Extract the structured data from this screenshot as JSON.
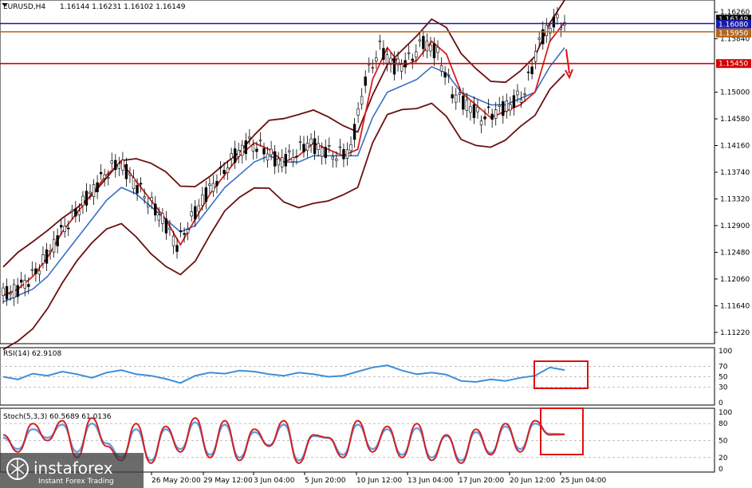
{
  "header": {
    "symbol": "EURUSD,H4",
    "ohlc": "1.16144 1.16231 1.16102 1.16149"
  },
  "price_axis": {
    "ticks": [
      "1.16260",
      "1.15840",
      "1.15000",
      "1.14580",
      "1.14160",
      "1.13740",
      "1.13320",
      "1.12900",
      "1.12480",
      "1.12060",
      "1.11640",
      "1.11220"
    ]
  },
  "price_tags": {
    "current": "1.16149",
    "blue_level": "1.16080",
    "brown_level": "1.15950",
    "red_level": "1.15450"
  },
  "rsi_panel": {
    "title": "RSI(14) 62.9108",
    "ticks": [
      "100",
      "70",
      "50",
      "30",
      "0"
    ]
  },
  "stoch_panel": {
    "title": "Stoch(5,3,3) 60.5689 61.0136",
    "ticks": [
      "100",
      "80",
      "50",
      "20",
      "0"
    ]
  },
  "time_axis": {
    "labels": [
      "26 May 20:00",
      "29 May 12:00",
      "3 Jun 04:00",
      "5 Jun 20:00",
      "10 Jun 12:00",
      "13 Jun 04:00",
      "17 Jun 20:00",
      "20 Jun 12:00",
      "25 Jun 04:00"
    ]
  },
  "watermark": {
    "brand": "instaforex",
    "tagline": "Instant Forex Trading"
  },
  "colors": {
    "upper_band": "#6b0f0f",
    "lower_band": "#6b0f0f",
    "ma_fast": "#d42020",
    "ma_slow": "#3a6fc4",
    "blue_level": "#1a1aa8",
    "brown_level": "#b5651d",
    "red_level": "#d40000",
    "rsi_line": "#3d8fd8",
    "stoch_main": "#d42020",
    "stoch_signal": "#6a9be0",
    "annotation": "#e01010"
  },
  "chart_data": [
    {
      "type": "line",
      "title": "EURUSD,H4",
      "ylim": [
        1.1108,
        1.164
      ],
      "x_labels": [
        "26 May 20:00",
        "29 May 12:00",
        "3 Jun 04:00",
        "5 Jun 20:00",
        "10 Jun 12:00",
        "13 Jun 04:00",
        "17 Jun 20:00",
        "20 Jun 12:00",
        "25 Jun 04:00"
      ],
      "series": [
        {
          "values": [
            1.118,
            1.119,
            1.121,
            1.124,
            1.128,
            1.131,
            1.134,
            1.137,
            1.139,
            1.136,
            1.133,
            1.13,
            1.126,
            1.13,
            1.134,
            1.137,
            1.14,
            1.142,
            1.141,
            1.139,
            1.14,
            1.142,
            1.141,
            1.14,
            1.141,
            1.152,
            1.157,
            1.154,
            1.155,
            1.158,
            1.156,
            1.15,
            1.148,
            1.146,
            1.147,
            1.148,
            1.15,
            1.158,
            1.161
          ]
        },
        {
          "values": [
            1.117,
            1.118,
            1.119,
            1.121,
            1.124,
            1.127,
            1.13,
            1.133,
            1.135,
            1.134,
            1.132,
            1.13,
            1.128,
            1.129,
            1.132,
            1.135,
            1.137,
            1.139,
            1.14,
            1.139,
            1.139,
            1.14,
            1.14,
            1.14,
            1.14,
            1.146,
            1.15,
            1.151,
            1.152,
            1.154,
            1.153,
            1.15,
            1.149,
            1.148,
            1.148,
            1.149,
            1.15,
            1.154,
            1.157
          ]
        }
      ],
      "horizontal_levels": [
        1.1608,
        1.1595,
        1.1545
      ],
      "last_price": 1.16149
    },
    {
      "type": "line",
      "title": "RSI(14) 62.9108",
      "ylim": [
        0,
        100
      ],
      "series": [
        {
          "values": [
            50,
            45,
            56,
            52,
            60,
            55,
            48,
            58,
            63,
            55,
            52,
            46,
            38,
            52,
            58,
            56,
            62,
            60,
            55,
            52,
            58,
            55,
            50,
            52,
            60,
            68,
            72,
            62,
            55,
            58,
            54,
            42,
            40,
            45,
            42,
            48,
            52,
            68,
            63
          ]
        }
      ]
    },
    {
      "type": "line",
      "title": "Stoch(5,3,3) 60.5689 61.0136",
      "ylim": [
        0,
        100
      ],
      "series": [
        {
          "values": [
            60,
            30,
            80,
            50,
            85,
            20,
            90,
            40,
            15,
            80,
            10,
            75,
            30,
            90,
            20,
            85,
            15,
            70,
            40,
            85,
            10,
            60,
            55,
            20,
            85,
            30,
            75,
            20,
            80,
            15,
            60,
            10,
            70,
            25,
            80,
            30,
            85,
            60,
            61
          ]
        },
        {
          "values": [
            55,
            35,
            70,
            55,
            78,
            30,
            80,
            45,
            20,
            70,
            15,
            70,
            35,
            82,
            25,
            78,
            20,
            65,
            42,
            78,
            15,
            58,
            55,
            25,
            78,
            35,
            70,
            25,
            72,
            20,
            58,
            15,
            65,
            28,
            75,
            35,
            80,
            62,
            61
          ]
        }
      ]
    }
  ]
}
